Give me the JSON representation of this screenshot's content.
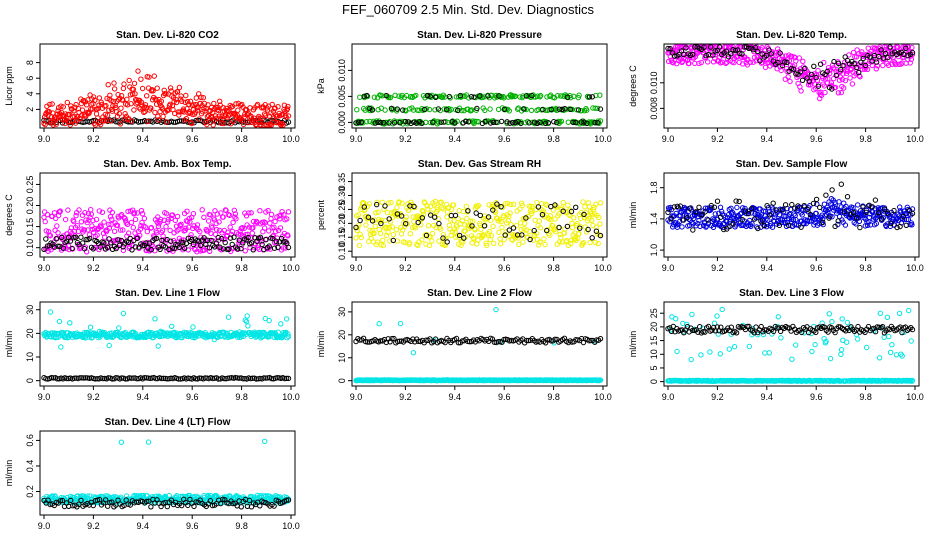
{
  "figure": {
    "title": "FEF_060709  2.5 Min. Std. Dev. Diagnostics"
  },
  "chart_data": [
    {
      "id": "co2",
      "type": "scatter",
      "title": "Stan. Dev. Li-820 CO2",
      "ylabel": "Licor ppm",
      "xlim": [
        9.0,
        10.0
      ],
      "xticks": [
        "9.0",
        "9.2",
        "9.4",
        "9.6",
        "9.8",
        "10.0"
      ],
      "ylim": [
        0,
        10
      ],
      "yticks": [
        {
          "v": 2,
          "label": "2"
        },
        {
          "v": 4,
          "label": "4"
        },
        {
          "v": 6,
          "label": "6"
        },
        {
          "v": 8,
          "label": "8"
        }
      ],
      "series": [
        {
          "name": "black",
          "color": "#000000",
          "gen": {
            "x0": 9.0,
            "x1": 9.99,
            "count": 120,
            "base": 0.45,
            "amp": 0.2,
            "seed": 11
          }
        },
        {
          "name": "red",
          "color": "#ff0000",
          "gen": {
            "x0": 9.0,
            "x1": 9.99,
            "count": 420,
            "base": 1.2,
            "amp": 1.5,
            "seed": 12,
            "bumpAt": 9.4,
            "bumpW": 0.22,
            "bumpAmp": 4.5
          }
        }
      ]
    },
    {
      "id": "pressure",
      "type": "scatter",
      "title": "Stan. Dev. Li-820 Pressure",
      "ylabel": "kPa",
      "xlim": [
        9.0,
        10.0
      ],
      "xticks": [
        "9.0",
        "9.2",
        "9.4",
        "9.6",
        "9.8",
        "10.0"
      ],
      "ylim": [
        -0.0005,
        0.0145
      ],
      "yticks": [
        {
          "v": 0,
          "label": "0.000"
        },
        {
          "v": 0.005,
          "label": "0.005"
        },
        {
          "v": 0.01,
          "label": "0.010"
        }
      ],
      "series": [
        {
          "name": "green",
          "color": "#00b000",
          "gen": {
            "x0": 9.0,
            "x1": 9.99,
            "count": 320,
            "base": 0.0,
            "amp": 0.0,
            "seed": 21,
            "levels": [
              0.0,
              0.0025,
              0.005
            ],
            "jit": 0.0003
          }
        },
        {
          "name": "black",
          "color": "#000000",
          "gen": {
            "x0": 9.0,
            "x1": 9.99,
            "count": 90,
            "base": 0.0,
            "amp": 0.0,
            "seed": 22,
            "levels": [
              0.0,
              0.0,
              0.0025,
              0.005
            ],
            "jit": 0.0002
          }
        }
      ]
    },
    {
      "id": "licor-temp",
      "type": "scatter",
      "title": "Stan. Dev. Li-820 Temp.",
      "ylabel": "degrees C",
      "xlim": [
        9.0,
        10.0
      ],
      "xticks": [
        "9.0",
        "9.2",
        "9.4",
        "9.6",
        "9.8",
        "10.0"
      ],
      "ylim": [
        0.0067,
        0.0128
      ],
      "yticks": [
        {
          "v": 0.008,
          "label": "0.008"
        },
        {
          "v": 0.01,
          "label": "0.010"
        }
      ],
      "series": [
        {
          "name": "magenta",
          "color": "#ff00ff",
          "gen": {
            "x0": 9.0,
            "x1": 9.99,
            "count": 420,
            "base": 0.0124,
            "amp": 0.0009,
            "seed": 31,
            "dipAt": 9.62,
            "dipW": 0.17,
            "dipAmp": 0.0032
          }
        },
        {
          "name": "black",
          "color": "#000000",
          "gen": {
            "x0": 9.0,
            "x1": 9.99,
            "count": 110,
            "base": 0.0125,
            "amp": 0.0005,
            "seed": 32,
            "dipAt": 9.62,
            "dipW": 0.17,
            "dipAmp": 0.0028
          }
        }
      ]
    },
    {
      "id": "box-temp",
      "type": "scatter",
      "title": "Stan. Dev. Amb. Box Temp.",
      "ylabel": "degrees C",
      "xlim": [
        9.0,
        10.0
      ],
      "xticks": [
        "9.0",
        "9.2",
        "9.4",
        "9.6",
        "9.8",
        "10.0"
      ],
      "ylim": [
        0.085,
        0.27
      ],
      "yticks": [
        {
          "v": 0.1,
          "label": "0.10"
        },
        {
          "v": 0.15,
          "label": "0.15"
        },
        {
          "v": 0.2,
          "label": "0.20"
        },
        {
          "v": 0.25,
          "label": "0.25"
        }
      ],
      "series": [
        {
          "name": "magenta",
          "color": "#ff00ff",
          "gen": {
            "x0": 9.0,
            "x1": 9.99,
            "count": 420,
            "base": 0.14,
            "amp": 0.05,
            "seed": 41
          }
        },
        {
          "name": "black",
          "color": "#000000",
          "gen": {
            "x0": 9.0,
            "x1": 9.99,
            "count": 140,
            "base": 0.11,
            "amp": 0.015,
            "seed": 42
          }
        }
      ]
    },
    {
      "id": "rh",
      "type": "scatter",
      "title": "Stan. Dev. Gas Stream RH",
      "ylabel": "percent",
      "xlim": [
        9.0,
        10.0
      ],
      "xticks": [
        "9.0",
        "9.2",
        "9.4",
        "9.6",
        "9.8",
        "10.0"
      ],
      "ylim": [
        0.09,
        0.37
      ],
      "yticks": [
        {
          "v": 0.1,
          "label": "0.10"
        },
        {
          "v": 0.15,
          "label": "0.15"
        },
        {
          "v": 0.2,
          "label": "0.20"
        },
        {
          "v": 0.25,
          "label": "0.25"
        },
        {
          "v": 0.3,
          "label": "0.30"
        },
        {
          "v": 0.35,
          "label": "0.35"
        }
      ],
      "series": [
        {
          "name": "yellow",
          "color": "#f0f000",
          "gen": {
            "x0": 9.0,
            "x1": 9.99,
            "count": 420,
            "base": 0.2,
            "amp": 0.08,
            "seed": 51
          }
        },
        {
          "name": "black",
          "color": "#000000",
          "gen": {
            "x0": 9.0,
            "x1": 9.99,
            "count": 60,
            "base": 0.2,
            "amp": 0.07,
            "seed": 52
          }
        }
      ]
    },
    {
      "id": "sample-flow",
      "type": "scatter",
      "title": "Stan. Dev. Sample Flow",
      "ylabel": "ml/min",
      "xlim": [
        9.0,
        10.0
      ],
      "xticks": [
        "9.0",
        "9.2",
        "9.4",
        "9.6",
        "9.8",
        "10.0"
      ],
      "ylim": [
        0.95,
        1.95
      ],
      "yticks": [
        {
          "v": 1.0,
          "label": "1.0"
        },
        {
          "v": 1.4,
          "label": "1.4"
        },
        {
          "v": 1.8,
          "label": "1.8"
        }
      ],
      "series": [
        {
          "name": "blue",
          "color": "#0000dd",
          "gen": {
            "x0": 9.0,
            "x1": 9.99,
            "count": 420,
            "base": 1.42,
            "amp": 0.13,
            "seed": 61,
            "bumpAt": 9.68,
            "bumpW": 0.12,
            "bumpAmp": 0.15
          }
        },
        {
          "name": "black",
          "color": "#000000",
          "gen": {
            "x0": 9.0,
            "x1": 9.99,
            "count": 80,
            "base": 1.45,
            "amp": 0.2,
            "seed": 62,
            "bumpAt": 9.7,
            "bumpW": 0.1,
            "bumpAmp": 0.2
          }
        }
      ]
    },
    {
      "id": "line1",
      "type": "scatter",
      "title": "Stan. Dev. Line 1 Flow",
      "ylabel": "ml/min",
      "xlim": [
        9.0,
        10.0
      ],
      "xticks": [
        "9.0",
        "9.2",
        "9.4",
        "9.6",
        "9.8",
        "10.0"
      ],
      "ylim": [
        -1,
        32
      ],
      "yticks": [
        {
          "v": 0,
          "label": "0"
        },
        {
          "v": 10,
          "label": "10"
        },
        {
          "v": 20,
          "label": "20"
        },
        {
          "v": 30,
          "label": "30"
        }
      ],
      "series": [
        {
          "name": "cyan",
          "color": "#00e5e5",
          "gen": {
            "x0": 9.0,
            "x1": 9.99,
            "count": 380,
            "base": 19.3,
            "amp": 1.2,
            "seed": 71,
            "outLow": 14,
            "outHigh": 31,
            "outFrac": 0.06
          }
        },
        {
          "name": "black",
          "color": "#000000",
          "gen": {
            "x0": 9.0,
            "x1": 9.99,
            "count": 130,
            "base": 1.0,
            "amp": 0.3,
            "seed": 72
          }
        }
      ]
    },
    {
      "id": "line2",
      "type": "scatter",
      "title": "Stan. Dev. Line 2 Flow",
      "ylabel": "ml/min",
      "xlim": [
        9.0,
        10.0
      ],
      "xticks": [
        "9.0",
        "9.2",
        "9.4",
        "9.6",
        "9.8",
        "10.0"
      ],
      "ylim": [
        -1,
        33
      ],
      "yticks": [
        {
          "v": 0,
          "label": "0"
        },
        {
          "v": 10,
          "label": "10"
        },
        {
          "v": 20,
          "label": "20"
        },
        {
          "v": 30,
          "label": "30"
        }
      ],
      "series": [
        {
          "name": "cyan",
          "color": "#00e5e5",
          "gen": {
            "x0": 9.0,
            "x1": 9.99,
            "count": 380,
            "base": 0.2,
            "amp": 0.15,
            "seed": 81,
            "outLow": 12,
            "outHigh": 31,
            "outFrac": 0.02
          }
        },
        {
          "name": "black",
          "color": "#000000",
          "gen": {
            "x0": 9.0,
            "x1": 9.99,
            "count": 130,
            "base": 17.5,
            "amp": 1.0,
            "seed": 82
          }
        }
      ]
    },
    {
      "id": "line3",
      "type": "scatter",
      "title": "Stan. Dev. Line 3 Flow",
      "ylabel": "ml/min",
      "xlim": [
        9.0,
        10.0
      ],
      "xticks": [
        "9.0",
        "9.2",
        "9.4",
        "9.6",
        "9.8",
        "10.0"
      ],
      "ylim": [
        -0.5,
        28
      ],
      "yticks": [
        {
          "v": 0,
          "label": "0"
        },
        {
          "v": 5,
          "label": "5"
        },
        {
          "v": 10,
          "label": "10"
        },
        {
          "v": 15,
          "label": "15"
        },
        {
          "v": 20,
          "label": "20"
        },
        {
          "v": 25,
          "label": "25"
        }
      ],
      "series": [
        {
          "name": "cyan",
          "color": "#00e5e5",
          "gen": {
            "x0": 9.0,
            "x1": 9.99,
            "count": 380,
            "base": 0.3,
            "amp": 0.15,
            "seed": 91,
            "outLow": 8,
            "outHigh": 27,
            "outFrac": 0.18
          }
        },
        {
          "name": "black",
          "color": "#000000",
          "gen": {
            "x0": 9.0,
            "x1": 9.99,
            "count": 140,
            "base": 19.0,
            "amp": 1.2,
            "seed": 92
          }
        }
      ]
    },
    {
      "id": "line4",
      "type": "scatter",
      "title": "Stan. Dev. Line 4 (LT) Flow",
      "ylabel": "ml/min",
      "xlim": [
        9.0,
        10.0
      ],
      "xticks": [
        "9.0",
        "9.2",
        "9.4",
        "9.6",
        "9.8",
        "10.0"
      ],
      "ylim": [
        0.04,
        0.65
      ],
      "yticks": [
        {
          "v": 0.2,
          "label": "0.2"
        },
        {
          "v": 0.4,
          "label": "0.4"
        },
        {
          "v": 0.6,
          "label": "0.6"
        }
      ],
      "series": [
        {
          "name": "cyan",
          "color": "#00e5e5",
          "gen": {
            "x0": 9.0,
            "x1": 9.99,
            "count": 380,
            "base": 0.14,
            "amp": 0.03,
            "seed": 101,
            "outLow": 0.58,
            "outHigh": 0.6,
            "outFrac": 0.008
          }
        },
        {
          "name": "black",
          "color": "#000000",
          "gen": {
            "x0": 9.0,
            "x1": 9.99,
            "count": 120,
            "base": 0.11,
            "amp": 0.03,
            "seed": 102
          }
        }
      ]
    }
  ]
}
